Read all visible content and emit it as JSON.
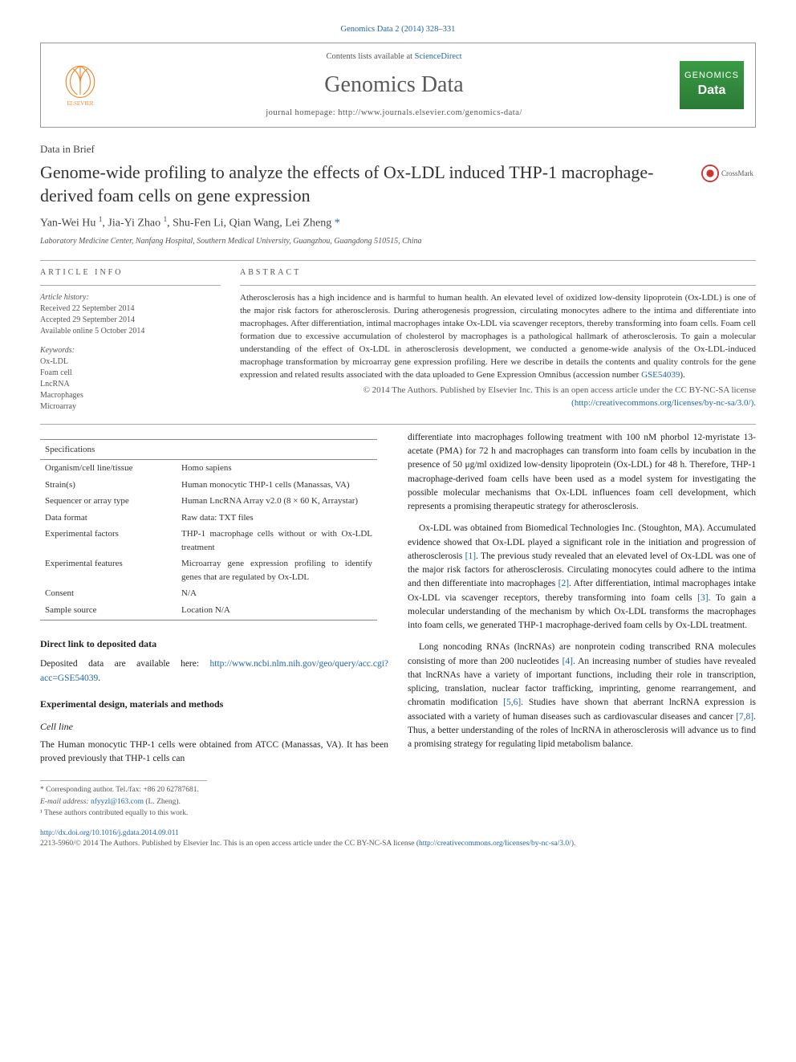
{
  "top_link": "Genomics Data 2 (2014) 328–331",
  "header": {
    "contents_prefix": "Contents lists available at ",
    "contents_link": "ScienceDirect",
    "journal_title": "Genomics Data",
    "homepage_label": "journal homepage: http://www.journals.elsevier.com/genomics-data/",
    "elsevier_label": "ELSEVIER",
    "gd_label_1": "GENOMICS",
    "gd_label_2": "Data"
  },
  "section_label": "Data in Brief",
  "article_title": "Genome-wide profiling to analyze the effects of Ox-LDL induced THP-1 macrophage-derived foam cells on gene expression",
  "crossmark_label": "CrossMark",
  "authors_html": "Yan-Wei Hu ¹, Jia-Yi Zhao ¹, Shu-Fen Li, Qian Wang, Lei Zheng *",
  "affiliation": "Laboratory Medicine Center, Nanfang Hospital, Southern Medical University, Guangzhou, Guangdong 510515, China",
  "info": {
    "left_heading": "article info",
    "history_head": "Article history:",
    "history": [
      "Received 22 September 2014",
      "Accepted 29 September 2014",
      "Available online 5 October 2014"
    ],
    "keywords_head": "Keywords:",
    "keywords": [
      "Ox-LDL",
      "Foam cell",
      "LncRNA",
      "Macrophages",
      "Microarray"
    ]
  },
  "abstract": {
    "heading": "abstract",
    "text": "Atherosclerosis has a high incidence and is harmful to human health. An elevated level of oxidized low-density lipoprotein (Ox-LDL) is one of the major risk factors for atherosclerosis. During atherogenesis progression, circulating monocytes adhere to the intima and differentiate into macrophages. After differentiation, intimal macrophages intake Ox-LDL via scavenger receptors, thereby transforming into foam cells. Foam cell formation due to excessive accumulation of cholesterol by macrophages is a pathological hallmark of atherosclerosis. To gain a molecular understanding of the effect of Ox-LDL in atherosclerosis development, we conducted a genome-wide analysis of the Ox-LDL-induced macrophage transformation by microarray gene expression profiling. Here we describe in details the contents and quality controls for the gene expression and related results associated with the data uploaded to Gene Expression Omnibus (accession number ",
    "accession": "GSE54039",
    "text_tail": ").",
    "copyright": "© 2014 The Authors. Published by Elsevier Inc. This is an open access article under the CC BY-NC-SA license",
    "license_url": "(http://creativecommons.org/licenses/by-nc-sa/3.0/)."
  },
  "spec_table": {
    "header": "Specifications",
    "rows": [
      [
        "Organism/cell line/tissue",
        "Homo sapiens"
      ],
      [
        "Strain(s)",
        "Human monocytic THP-1 cells (Manassas, VA)"
      ],
      [
        "Sequencer or array type",
        "Human LncRNA Array v2.0 (8 × 60 K, Arraystar)"
      ],
      [
        "Data format",
        "Raw data: TXT files"
      ],
      [
        "Experimental factors",
        "THP-1 macrophage cells without or with Ox-LDL treatment"
      ],
      [
        "Experimental features",
        "Microarray gene expression profiling to identify genes that are regulated by Ox-LDL"
      ],
      [
        "Consent",
        "N/A"
      ],
      [
        "Sample source",
        "Location N/A"
      ]
    ]
  },
  "left_col": {
    "h1": "Direct link to deposited data",
    "p1_a": "Deposited data are available here: ",
    "p1_link": "http://www.ncbi.nlm.nih.gov/geo/query/acc.cgi?acc=GSE54039",
    "p1_b": ".",
    "h2": "Experimental design, materials and methods",
    "h3": "Cell line",
    "p2": "The Human monocytic THP-1 cells were obtained from ATCC (Manassas, VA). It has been proved previously that THP-1 cells can"
  },
  "right_col": {
    "p1": "differentiate into macrophages following treatment with 100 nM phorbol 12-myristate 13-acetate (PMA) for 72 h and macrophages can transform into foam cells by incubation in the presence of 50 μg/ml oxidized low-density lipoprotein (Ox-LDL) for 48 h. Therefore, THP-1 macrophage-derived foam cells have been used as a model system for investigating the possible molecular mechanisms that Ox-LDL influences foam cell development, which represents a promising therapeutic strategy for atherosclerosis.",
    "p2_a": "Ox-LDL was obtained from Biomedical Technologies Inc. (Stoughton, MA). Accumulated evidence showed that Ox-LDL played a significant role in the initiation and progression of atherosclerosis ",
    "p2_r1": "[1]",
    "p2_b": ". The previous study revealed that an elevated level of Ox-LDL was one of the major risk factors for atherosclerosis. Circulating monocytes could adhere to the intima and then differentiate into macrophages ",
    "p2_r2": "[2]",
    "p2_c": ". After differentiation, intimal macrophages intake Ox-LDL via scavenger receptors, thereby transforming into foam cells ",
    "p2_r3": "[3]",
    "p2_d": ". To gain a molecular understanding of the mechanism by which Ox-LDL transforms the macrophages into foam cells, we generated THP-1 macrophage-derived foam cells by Ox-LDL treatment.",
    "p3_a": "Long noncoding RNAs (lncRNAs) are nonprotein coding transcribed RNA molecules consisting of more than 200 nucleotides ",
    "p3_r4": "[4]",
    "p3_b": ". An increasing number of studies have revealed that lncRNAs have a variety of important functions, including their role in transcription, splicing, translation, nuclear factor trafficking, imprinting, genome rearrangement, and chromatin modification ",
    "p3_r56": "[5,6]",
    "p3_c": ". Studies have shown that aberrant lncRNA expression is associated with a variety of human diseases such as cardiovascular diseases and cancer ",
    "p3_r78": "[7,8]",
    "p3_d": ". Thus, a better understanding of the roles of lncRNA in atherosclerosis will advance us to find a promising strategy for regulating lipid metabolism balance."
  },
  "footnotes": {
    "corr": "* Corresponding author. Tel./fax: +86 20 62787681.",
    "email_label": "E-mail address: ",
    "email": "nfyyzl@163.com",
    "email_tail": " (L. Zheng).",
    "equal": "¹ These authors contributed equally to this work."
  },
  "bottom": {
    "doi": "http://dx.doi.org/10.1016/j.gdata.2014.09.011",
    "issn_line": "2213-5960/© 2014 The Authors. Published by Elsevier Inc. This is an open access article under the CC BY-NC-SA license (",
    "license": "http://creativecommons.org/licenses/by-nc-sa/3.0/",
    "tail": ")."
  },
  "colors": {
    "link": "#2266aa",
    "text": "#333333",
    "elsevier": "#ea8a33",
    "gd_green": "#3a9b45"
  }
}
